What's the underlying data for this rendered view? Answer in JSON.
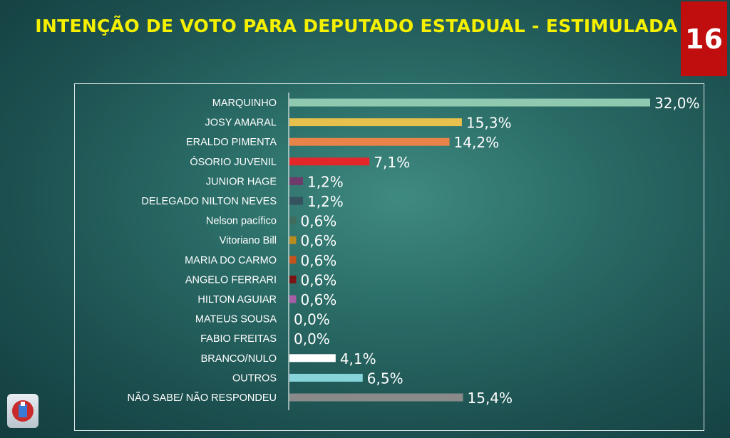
{
  "header": {
    "title": "INTENÇÃO DE VOTO PARA DEPUTADO ESTADUAL - ESTIMULADA",
    "slide_number": "16"
  },
  "chart_data": {
    "type": "bar",
    "orientation": "horizontal",
    "title": "INTENÇÃO DE VOTO PARA DEPUTADO ESTADUAL - ESTIMULADA",
    "categories": [
      "MARQUINHO",
      "JOSY AMARAL",
      "ERALDO PIMENTA",
      "ÓSORIO JUVENIL",
      "JUNIOR HAGE",
      "DELEGADO NILTON NEVES",
      "Nelson pacífico",
      "Vitoriano Bill",
      "MARIA DO CARMO",
      "ANGELO FERRARI",
      "HILTON AGUIAR",
      "MATEUS SOUSA",
      "FABIO FREITAS",
      "BRANCO/NULO",
      "OUTROS",
      "NÃO SABE/ NÃO RESPONDEU"
    ],
    "values": [
      32.0,
      15.3,
      14.2,
      7.1,
      1.2,
      1.2,
      0.6,
      0.6,
      0.6,
      0.6,
      0.6,
      0.0,
      0.0,
      4.1,
      6.5,
      15.4
    ],
    "labels": [
      "32,0%",
      "15,3%",
      "14,2%",
      "7,1%",
      "1,2%",
      "1,2%",
      "0,6%",
      "0,6%",
      "0,6%",
      "0,6%",
      "0,6%",
      "0,0%",
      "0,0%",
      "4,1%",
      "6,5%",
      "15,4%"
    ],
    "colors": [
      "#8fc9b0",
      "#e8c04d",
      "#e8834a",
      "#e3262a",
      "#6e3b6b",
      "#34525f",
      "#3e6d5e",
      "#b88b1f",
      "#c4531c",
      "#7a1414",
      "#a45ea6",
      "#2f7a6f",
      "#2f7a6f",
      "#ffffff",
      "#86d3da",
      "#8a8a8a"
    ],
    "xlim": [
      0,
      32
    ],
    "grid": false,
    "legend": "none",
    "xlabel": "",
    "ylabel": ""
  }
}
